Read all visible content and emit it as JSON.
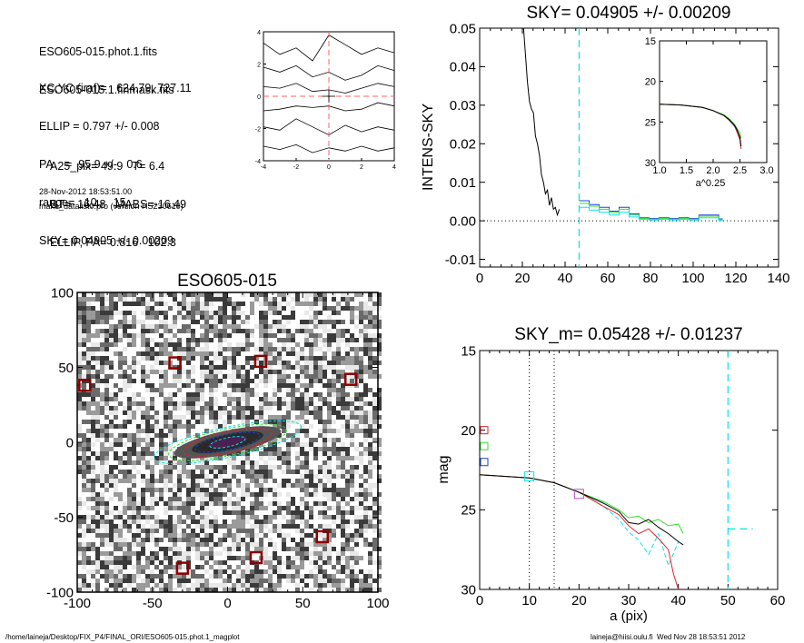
{
  "header": {
    "lines_a": [
      "ESO605-015.phot.1.fits",
      "ESO605-015.1.finmask.fits"
    ],
    "lines_b": [
      "XC,YC (iraf)=   624.79, 727.11",
      "ELLIP = 0.797 +/- 0.008",
      "PA    =  95.9 +/-   0.6",
      "range=   10.-   15.",
      "SKY= 0.04905 +/- 0.00209"
    ],
    "lines_c": [
      "A25_pix= 49.9   T= 6.4",
      "BT=  16.48   MABS=-16.49",
      "ELLIP, PA= 0.816   102.3"
    ],
    "timestamp": "28-Nov-2012 18:53:51.00",
    "program": "make_datalist0.pro (version HS230610)"
  },
  "footer": {
    "path": "/home/laineja/Desktop/FIX_P4/FINAL_ORI/ESO605-015.phot.1_magplot",
    "user": "laineja@hiisi.oulu.fi  Wed Nov 28 18:53:51 2012"
  },
  "colors": {
    "black": "#000000",
    "cyan": "#00e5ee",
    "red": "#e8202a",
    "green": "#33dd33",
    "blue": "#2040e0",
    "maroon": "#8b0000",
    "contour_red": "#ff6060"
  },
  "chart_data": [
    {
      "id": "contour",
      "type": "contour",
      "xlim": [
        -4,
        4
      ],
      "ylim": [
        -4,
        4
      ],
      "xticks": [
        "-4",
        "-2",
        "0",
        "2",
        "4"
      ],
      "yticks": [
        "4",
        "2",
        "0",
        "-2",
        "-4"
      ],
      "center": [
        0,
        0
      ]
    },
    {
      "id": "sky",
      "type": "line",
      "title": "SKY= 0.04905 +/- 0.00209",
      "ylabel": "INTENS-SKY",
      "xlim": [
        0,
        150
      ],
      "ylim": [
        -0.012,
        0.05
      ],
      "xticks": [
        "0",
        "20",
        "40",
        "60",
        "80",
        "100",
        "120",
        "140"
      ],
      "yticks": [
        "0.05",
        "0.04",
        "0.03",
        "0.02",
        "0.01",
        "0.00",
        "-0.01"
      ],
      "sky_radius": 49.9,
      "series": [
        {
          "color": "black",
          "x": [
            22,
            24,
            25,
            26,
            27,
            28,
            29,
            30,
            31,
            32,
            33,
            34,
            35,
            36,
            37,
            38,
            39,
            40
          ],
          "y": [
            0.05,
            0.036,
            0.031,
            0.029,
            0.028,
            0.022,
            0.02,
            0.017,
            0.012,
            0.01,
            0.007,
            0.008,
            0.004,
            0.006,
            0.003,
            0.0035,
            0.0015,
            0.003
          ]
        },
        {
          "color": "blue",
          "x": [
            50,
            55,
            55,
            60,
            60,
            65,
            65,
            70,
            70,
            75,
            75,
            80,
            80,
            85,
            85,
            90,
            90,
            95,
            95,
            100,
            100,
            105,
            105,
            110,
            110,
            115,
            115,
            120,
            120,
            122
          ],
          "y": [
            0.0052,
            0.0052,
            0.0042,
            0.0042,
            0.0035,
            0.0035,
            0.0025,
            0.0025,
            0.0035,
            0.0035,
            0.0018,
            0.0018,
            0.0008,
            0.0008,
            0.0006,
            0.0006,
            0.0008,
            0.0008,
            0.0006,
            0.0006,
            0.0008,
            0.0008,
            0.0006,
            0.0006,
            0.0015,
            0.0015,
            0.0015,
            0.0015,
            0.0005,
            0.0005
          ]
        },
        {
          "color": "green",
          "x": [
            50,
            55,
            55,
            60,
            60,
            65,
            65,
            70,
            70,
            75,
            75,
            80,
            80,
            85,
            85,
            90,
            90,
            95,
            95,
            100,
            100,
            105,
            105,
            110,
            110,
            115,
            115,
            120,
            120,
            122
          ],
          "y": [
            0.0045,
            0.0045,
            0.0038,
            0.0038,
            0.003,
            0.003,
            0.0022,
            0.0022,
            0.003,
            0.003,
            0.0015,
            0.0015,
            0.0006,
            0.0006,
            0.0004,
            0.0004,
            0.0006,
            0.0006,
            0.0004,
            0.0004,
            0.0006,
            0.0006,
            0.0004,
            0.0004,
            0.0012,
            0.0012,
            0.0012,
            0.0012,
            0.0003,
            0.0003
          ]
        },
        {
          "color": "cyan",
          "x": [
            50,
            55,
            55,
            60,
            60,
            65,
            65,
            70,
            70,
            75,
            75,
            80,
            80,
            85,
            85,
            90,
            90,
            95,
            95,
            100,
            100,
            105,
            105,
            110,
            110,
            115,
            115,
            120,
            120,
            122
          ],
          "y": [
            0.0035,
            0.0035,
            0.0028,
            0.0028,
            0.0022,
            0.0022,
            0.0015,
            0.0015,
            0.0022,
            0.0022,
            0.001,
            0.001,
            0.0004,
            0.0004,
            0.0002,
            0.0002,
            0.0004,
            0.0004,
            0.0002,
            0.0002,
            0.0004,
            0.0004,
            0.0002,
            0.0002,
            0.0008,
            0.0008,
            0.0008,
            0.0008,
            0.0001,
            0.0001
          ]
        }
      ]
    },
    {
      "id": "sky-inset",
      "type": "line",
      "xlabel": "a^0.25",
      "xlim": [
        1.0,
        3.0
      ],
      "ylim": [
        15,
        30
      ],
      "xticks": [
        "1.0",
        "1.5",
        "2.0",
        "2.5",
        "3.0"
      ],
      "yticks": [
        "15",
        "20",
        "25",
        "30"
      ],
      "series": [
        {
          "color": "cyan",
          "x": [
            1.0,
            1.4,
            1.8,
            2.0,
            2.2,
            2.3,
            2.4,
            2.45,
            2.5
          ],
          "y": [
            22.8,
            22.9,
            23.2,
            23.6,
            24.2,
            24.8,
            25.6,
            26.2,
            26.8
          ]
        },
        {
          "color": "green",
          "x": [
            1.0,
            1.4,
            1.8,
            2.0,
            2.2,
            2.3,
            2.4,
            2.45,
            2.5,
            2.52
          ],
          "y": [
            22.8,
            22.9,
            23.2,
            23.6,
            24.1,
            24.6,
            25.3,
            25.8,
            26.4,
            27.0
          ]
        },
        {
          "color": "red",
          "x": [
            1.0,
            1.4,
            1.8,
            2.0,
            2.2,
            2.3,
            2.4,
            2.45,
            2.5,
            2.52
          ],
          "y": [
            22.8,
            22.9,
            23.2,
            23.6,
            24.2,
            24.8,
            25.5,
            26.3,
            27.2,
            28.3
          ]
        },
        {
          "color": "black",
          "x": [
            1.0,
            1.4,
            1.8,
            2.0,
            2.2,
            2.3,
            2.4,
            2.45,
            2.5,
            2.52
          ],
          "y": [
            22.8,
            22.9,
            23.2,
            23.6,
            24.2,
            24.7,
            25.4,
            26.0,
            26.9,
            28.0
          ]
        }
      ]
    },
    {
      "id": "image",
      "type": "image",
      "title": "ESO605-015",
      "xlim": [
        -100,
        100
      ],
      "ylim": [
        -100,
        100
      ],
      "xticks": [
        "-100",
        "-50",
        "0",
        "50",
        "100"
      ],
      "yticks": [
        "100",
        "50",
        "0",
        "-50",
        "-100"
      ],
      "masked_stars": [
        [
          -95,
          38
        ],
        [
          -35,
          53
        ],
        [
          22,
          54
        ],
        [
          82,
          42
        ],
        [
          63,
          -63
        ],
        [
          19,
          -77
        ],
        [
          -30,
          -84
        ]
      ],
      "ellipses": [
        {
          "a": 50,
          "b": 10,
          "pa": 12,
          "color": "cyan"
        },
        {
          "a": 40,
          "b": 9,
          "pa": 12,
          "color": "green"
        },
        {
          "a": 30,
          "b": 7,
          "pa": 12,
          "color": "red"
        },
        {
          "a": 22,
          "b": 5,
          "pa": 12,
          "color": "blue"
        },
        {
          "a": 12,
          "b": 3,
          "pa": 12,
          "color": "cyan"
        }
      ]
    },
    {
      "id": "mag",
      "type": "line",
      "title": "SKY_m=  0.05428 +/- 0.01237",
      "xlabel": "a (pix)",
      "ylabel": "mag",
      "xlim": [
        0,
        60
      ],
      "ylim": [
        15,
        30
      ],
      "xticks": [
        "0",
        "10",
        "20",
        "30",
        "40",
        "50",
        "60"
      ],
      "yticks": [
        "15",
        "20",
        "25",
        "30"
      ],
      "vlines_dotted": [
        10,
        15
      ],
      "vline_cyan": 50,
      "legend_boxes": [
        {
          "y": 20,
          "color": "red"
        },
        {
          "y": 21,
          "color": "green"
        },
        {
          "y": 22,
          "color": "blue"
        }
      ],
      "markers": [
        {
          "x": 10,
          "y": 22.9,
          "color": "cyan"
        },
        {
          "x": 20,
          "y": 24.0,
          "color": "purple"
        }
      ],
      "series": [
        {
          "color": "cyan",
          "x": [
            0,
            5,
            10,
            15,
            20,
            25,
            28,
            30,
            32,
            34,
            36,
            38,
            40
          ],
          "y": [
            22.8,
            22.9,
            23.0,
            23.3,
            23.9,
            24.8,
            25.6,
            26.4,
            26.9,
            27.8,
            26.5,
            28.5,
            27.0
          ]
        },
        {
          "color": "green",
          "x": [
            0,
            5,
            10,
            15,
            20,
            25,
            28,
            30,
            32,
            34,
            36,
            38,
            40,
            41
          ],
          "y": [
            22.8,
            22.9,
            23.0,
            23.3,
            23.9,
            24.5,
            25.0,
            25.5,
            25.4,
            25.8,
            25.6,
            26.0,
            25.9,
            26.5
          ]
        },
        {
          "color": "red",
          "x": [
            0,
            5,
            10,
            15,
            20,
            25,
            28,
            30,
            32,
            34,
            36,
            38,
            39,
            40
          ],
          "y": [
            22.8,
            22.9,
            23.0,
            23.3,
            23.9,
            24.8,
            25.3,
            26.0,
            26.5,
            26.2,
            26.8,
            27.5,
            29.0,
            30.0
          ]
        },
        {
          "color": "black",
          "x": [
            0,
            5,
            10,
            15,
            20,
            25,
            28,
            30,
            32,
            34,
            36,
            38,
            40,
            41
          ],
          "y": [
            22.8,
            22.9,
            23.0,
            23.3,
            23.9,
            24.6,
            25.1,
            25.8,
            25.9,
            25.6,
            26.1,
            26.5,
            27.0,
            27.2
          ]
        }
      ],
      "sky_line": {
        "x": [
          50,
          55
        ],
        "y": [
          26.2,
          26.2
        ]
      }
    }
  ]
}
